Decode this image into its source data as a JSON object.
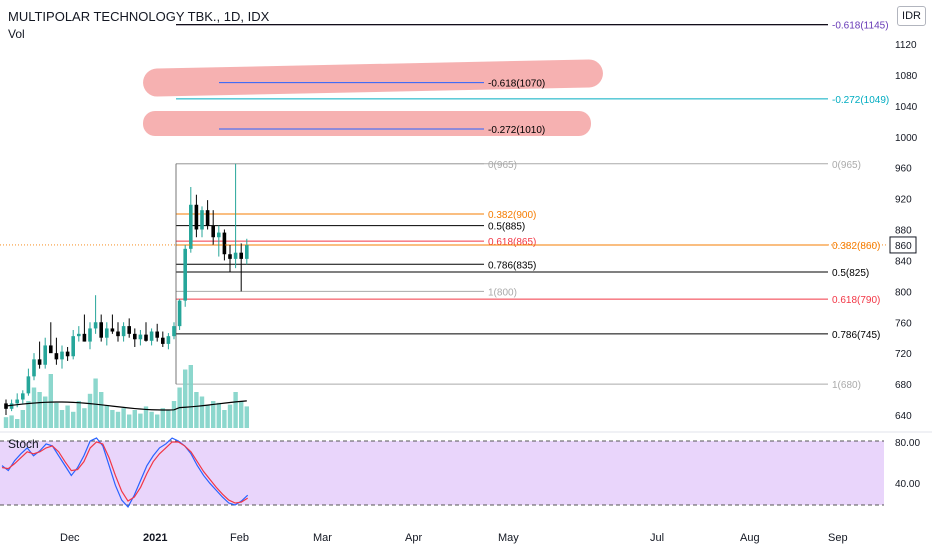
{
  "header": {
    "title": "MULTIPOLAR TECHNOLOGY TBK., 1D, IDX",
    "volume_label": "Vol",
    "currency_button": "IDR"
  },
  "stoch": {
    "label": "Stoch",
    "levels": [
      "80.00",
      "40.00"
    ]
  },
  "price_axis": {
    "ticks": [
      1120,
      1080,
      1040,
      1000,
      960,
      920,
      880,
      840,
      800,
      760,
      720,
      680,
      640
    ],
    "last_price": "860"
  },
  "time_axis": {
    "labels": [
      "Dec",
      "2021",
      "Feb",
      "Mar",
      "Apr",
      "May",
      "Jul",
      "Aug",
      "Sep"
    ]
  },
  "colors": {
    "up": "#26a69a",
    "down": "#000000",
    "stoch_bg": "#e9d5fb",
    "highlight": "#f4a3a3"
  },
  "fib_left": [
    {
      "label": "-0.618(1070)",
      "color": "#000000",
      "value": 1070
    },
    {
      "label": "-0.272(1010)",
      "color": "#000000",
      "value": 1010
    },
    {
      "label": "0(965)",
      "color": "#aaaaaa",
      "value": 965
    },
    {
      "label": "0.382(900)",
      "color": "#f57c00",
      "value": 900
    },
    {
      "label": "0.5(885)",
      "color": "#000000",
      "value": 885
    },
    {
      "label": "0.618(865)",
      "color": "#f23645",
      "value": 865
    },
    {
      "label": "0.786(835)",
      "color": "#000000",
      "value": 835
    },
    {
      "label": "1(800)",
      "color": "#aaaaaa",
      "value": 800
    }
  ],
  "fib_right": [
    {
      "label": "-0.618(1145)",
      "color": "#673ab7",
      "value": 1145
    },
    {
      "label": "-0.272(1049)",
      "color": "#00acc1",
      "value": 1049
    },
    {
      "label": "0(965)",
      "color": "#aaaaaa",
      "value": 965
    },
    {
      "label": "0.382(860)",
      "color": "#f57c00",
      "value": 860
    },
    {
      "label": "0.5(825)",
      "color": "#000000",
      "value": 825
    },
    {
      "label": "0.618(790)",
      "color": "#f23645",
      "value": 790
    },
    {
      "label": "0.786(745)",
      "color": "#000000",
      "value": 745
    },
    {
      "label": "1(680)",
      "color": "#aaaaaa",
      "value": 680
    }
  ]
}
